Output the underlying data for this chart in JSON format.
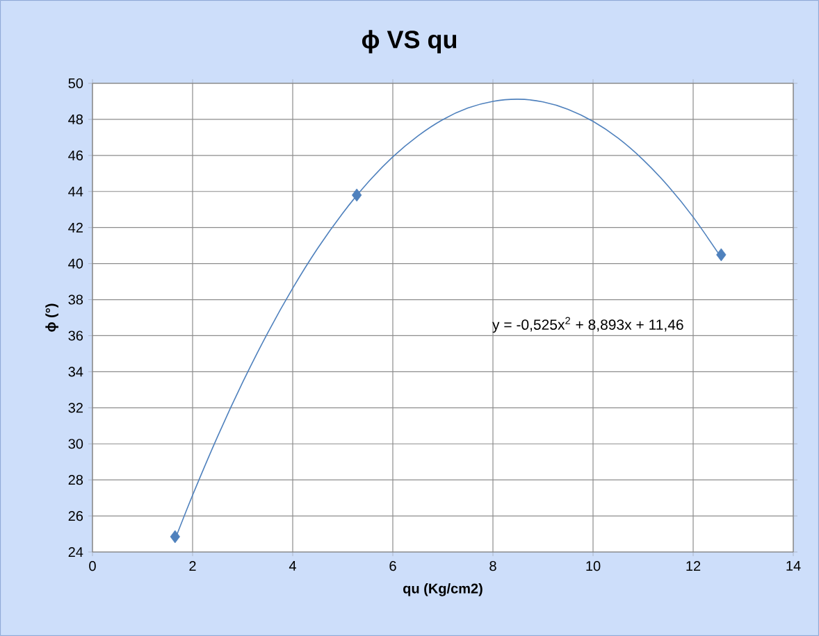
{
  "chart_data": {
    "type": "scatter",
    "title": "ϕ VS qu",
    "xlabel": "qu (Kg/cm2)",
    "ylabel": "ϕ (°)",
    "xlim": [
      0,
      14
    ],
    "ylim": [
      24,
      50
    ],
    "xticks": [
      0,
      2,
      4,
      6,
      8,
      10,
      12,
      14
    ],
    "yticks": [
      24,
      26,
      28,
      30,
      32,
      34,
      36,
      38,
      40,
      42,
      44,
      46,
      48,
      50
    ],
    "grid": true,
    "legend": false,
    "annotations": [
      "y = -0,525x$^{2}$ + 8,893x + 11,46"
    ],
    "series": [
      {
        "color": "#4f81bd",
        "marker": "diamond",
        "x": [
          1.65,
          5.28,
          12.56
        ],
        "values": [
          24.85,
          43.8,
          40.49
        ]
      },
      {
        "type": "line",
        "color": "#4f81bd",
        "marker": "none",
        "x": [
          1.65,
          2,
          2.5,
          3,
          3.5,
          4,
          4.5,
          5,
          5.5,
          6,
          6.5,
          7,
          7.5,
          8,
          8.5,
          9,
          9.5,
          10,
          10.5,
          11,
          11.5,
          12,
          12.56
        ],
        "values": [
          24.7,
          27.15,
          30.41,
          33.41,
          36.15,
          38.63,
          40.85,
          42.8,
          44.49,
          45.92,
          47.08,
          47.99,
          48.63,
          49.0,
          49.12,
          48.97,
          48.56,
          47.89,
          46.96,
          45.76,
          44.3,
          42.58,
          40.34
        ]
      }
    ]
  }
}
